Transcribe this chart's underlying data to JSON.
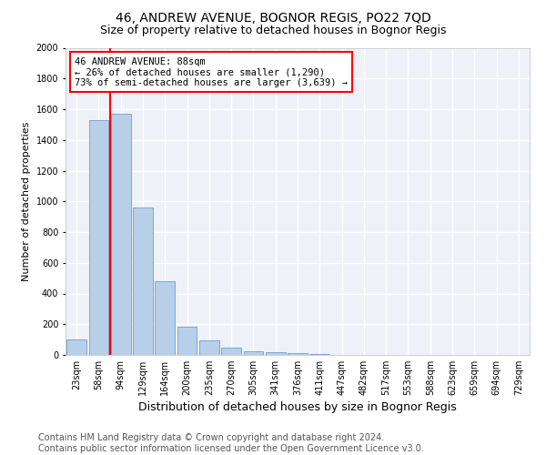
{
  "title_line1": "46, ANDREW AVENUE, BOGNOR REGIS, PO22 7QD",
  "title_line2": "Size of property relative to detached houses in Bognor Regis",
  "xlabel": "Distribution of detached houses by size in Bognor Regis",
  "ylabel": "Number of detached properties",
  "categories": [
    "23sqm",
    "58sqm",
    "94sqm",
    "129sqm",
    "164sqm",
    "200sqm",
    "235sqm",
    "270sqm",
    "305sqm",
    "341sqm",
    "376sqm",
    "411sqm",
    "447sqm",
    "482sqm",
    "517sqm",
    "553sqm",
    "588sqm",
    "623sqm",
    "659sqm",
    "694sqm",
    "729sqm"
  ],
  "values": [
    100,
    1530,
    1570,
    960,
    480,
    185,
    95,
    45,
    25,
    20,
    10,
    5,
    2,
    1,
    0,
    0,
    0,
    0,
    0,
    0,
    0
  ],
  "bar_color": "#b8cfe8",
  "bar_edge_color": "#6a9fd4",
  "vline_color": "red",
  "vline_pos": 1.5,
  "ylim": [
    0,
    2000
  ],
  "yticks": [
    0,
    200,
    400,
    600,
    800,
    1000,
    1200,
    1400,
    1600,
    1800,
    2000
  ],
  "annotation_box_text": "46 ANDREW AVENUE: 88sqm\n← 26% of detached houses are smaller (1,290)\n73% of semi-detached houses are larger (3,639) →",
  "footer": "Contains HM Land Registry data © Crown copyright and database right 2024.\nContains public sector information licensed under the Open Government Licence v3.0.",
  "bg_color": "#eef2f8",
  "grid_color": "#ffffff",
  "title_fontsize": 10,
  "subtitle_fontsize": 9,
  "ylabel_fontsize": 8,
  "xlabel_fontsize": 9,
  "tick_fontsize": 7,
  "footer_fontsize": 7,
  "annot_fontsize": 7.5
}
